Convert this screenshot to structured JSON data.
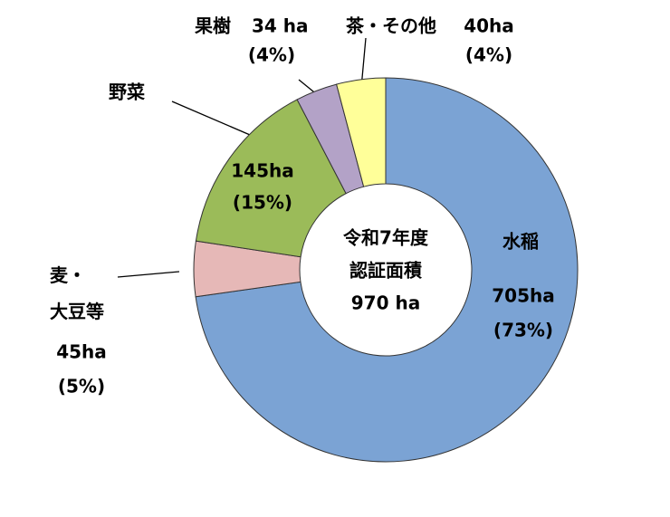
{
  "chart_data": {
    "type": "donut",
    "categories": [
      "水稲",
      "麦・大豆等",
      "野菜",
      "果樹",
      "茶・その他"
    ],
    "values": [
      705,
      45,
      145,
      34,
      40
    ],
    "value_labels": [
      "705ha",
      "45ha",
      "145ha",
      "34 ha",
      "40ha"
    ],
    "percent_labels": [
      "(73%)",
      "(5%)",
      "(15%)",
      "(4%)",
      "(4%)"
    ],
    "colors": [
      "#7ba3d4",
      "#e6b8b7",
      "#9bbb59",
      "#b3a2c7",
      "#ffff99"
    ],
    "center_label": [
      "令和7年度",
      "認証面積",
      "970 ha"
    ]
  }
}
